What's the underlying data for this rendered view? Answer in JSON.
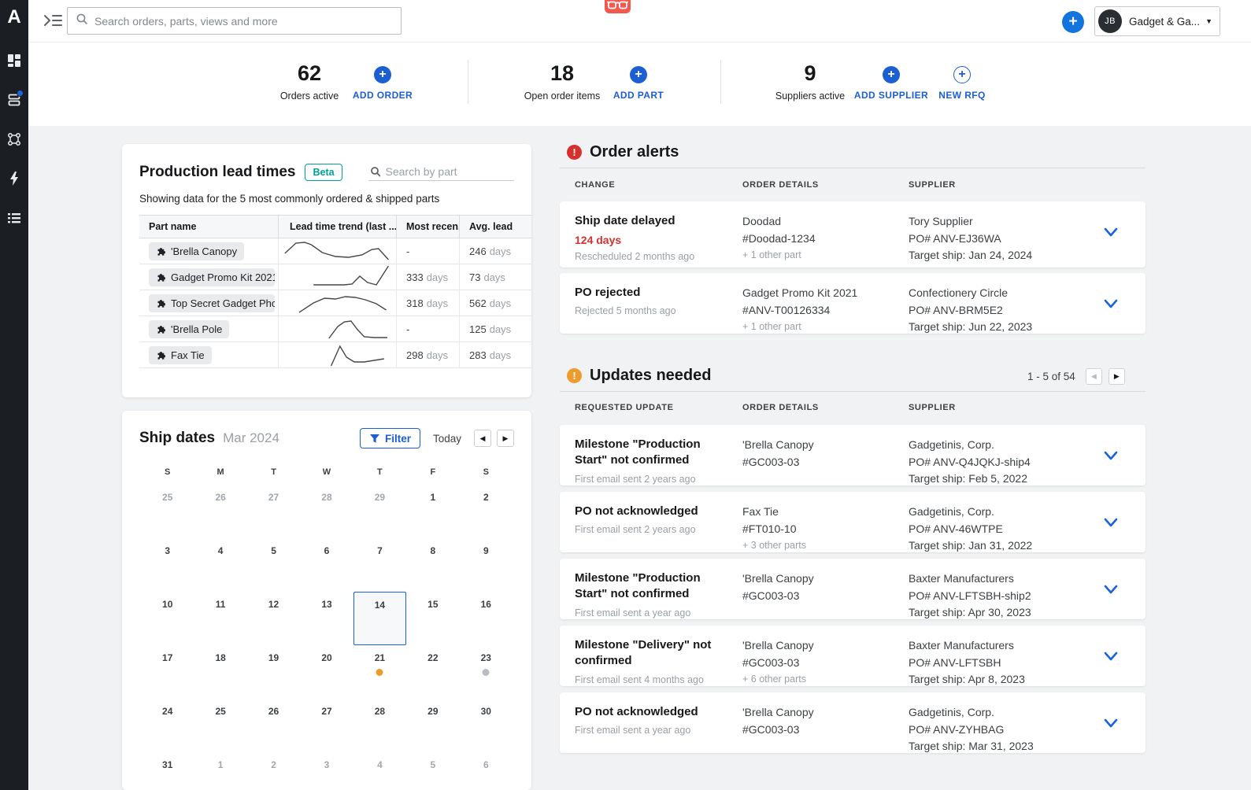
{
  "colors": {
    "accent_blue": "#1b5fd2",
    "teal": "#00a195",
    "alert_red": "#d5312e",
    "warn_orange": "#ee9b2d",
    "event_orange": "#ee9b2e",
    "event_gray": "#b9bdc1"
  },
  "sidebar": {
    "logo": "A",
    "items": [
      {
        "name": "dashboard"
      },
      {
        "name": "orders",
        "notification": true
      },
      {
        "name": "parts"
      },
      {
        "name": "automations"
      },
      {
        "name": "views"
      }
    ]
  },
  "topbar": {
    "search_placeholder": "Search orders, parts, views and more",
    "add_button": "+",
    "account": {
      "initials": "JB",
      "name": "Gadget & Ga..."
    }
  },
  "stats": [
    {
      "value": "62",
      "label": "Orders active"
    },
    {
      "value": "18",
      "label": "Open order items"
    },
    {
      "value": "9",
      "label": "Suppliers active"
    }
  ],
  "stat_actions": {
    "add_order": "ADD ORDER",
    "add_part": "ADD PART",
    "add_supplier": "ADD SUPPLIER",
    "new_rfq": "NEW RFQ"
  },
  "lead_times": {
    "title": "Production lead times",
    "badge": "Beta",
    "search_placeholder": "Search by part",
    "subtitle": "Showing data for the 5 most commonly ordered & shipped parts",
    "columns": [
      "Part name",
      "Lead time trend (last ...",
      "Most recen...",
      "Avg. lead"
    ],
    "rows": [
      {
        "name": "'Brella Canopy",
        "most_recent": "-",
        "avg": "246 days",
        "trend": [
          [
            2,
            20
          ],
          [
            12,
            7
          ],
          [
            20,
            6
          ],
          [
            26,
            9
          ],
          [
            36,
            19
          ],
          [
            48,
            24
          ],
          [
            60,
            25
          ],
          [
            72,
            22
          ],
          [
            81,
            15
          ],
          [
            87,
            14
          ],
          [
            96,
            28
          ]
        ]
      },
      {
        "name": "Gadget Promo Kit 2021",
        "most_recent": "333 days",
        "avg": "73 days",
        "trend": [
          [
            28,
            27
          ],
          [
            38,
            27
          ],
          [
            47,
            27
          ],
          [
            56,
            27
          ],
          [
            63,
            26
          ],
          [
            70,
            16
          ],
          [
            77,
            24
          ],
          [
            85,
            27
          ],
          [
            96,
            3
          ]
        ]
      },
      {
        "name": "Top Secret Gadget Pho",
        "most_recent": "318 days",
        "avg": "562 days",
        "trend": [
          [
            15,
            29
          ],
          [
            28,
            17
          ],
          [
            38,
            11
          ],
          [
            48,
            12
          ],
          [
            57,
            9
          ],
          [
            66,
            10
          ],
          [
            75,
            13
          ],
          [
            85,
            18
          ],
          [
            94,
            26
          ]
        ]
      },
      {
        "name": "'Brella Pole",
        "most_recent": "-",
        "avg": "125 days",
        "trend": [
          [
            42,
            29
          ],
          [
            50,
            14
          ],
          [
            56,
            8
          ],
          [
            62,
            7
          ],
          [
            68,
            18
          ],
          [
            74,
            27
          ],
          [
            83,
            28
          ],
          [
            95,
            28
          ]
        ]
      },
      {
        "name": "Fax Tie",
        "most_recent": "298 days",
        "avg": "283 days",
        "trend": [
          [
            44,
            31
          ],
          [
            52,
            6
          ],
          [
            58,
            20
          ],
          [
            65,
            26
          ],
          [
            74,
            26
          ],
          [
            83,
            24
          ],
          [
            92,
            22
          ]
        ]
      }
    ]
  },
  "ship_dates": {
    "title": "Ship dates",
    "month": "Mar 2024",
    "filter_label": "Filter",
    "today_label": "Today",
    "weekdays": [
      "S",
      "M",
      "T",
      "W",
      "T",
      "F",
      "S"
    ],
    "weeks": [
      [
        {
          "d": "25",
          "muted": true
        },
        {
          "d": "26",
          "muted": true
        },
        {
          "d": "27",
          "muted": true
        },
        {
          "d": "28",
          "muted": true
        },
        {
          "d": "29",
          "muted": true
        },
        {
          "d": "1"
        },
        {
          "d": "2"
        }
      ],
      [
        {
          "d": "3"
        },
        {
          "d": "4"
        },
        {
          "d": "5"
        },
        {
          "d": "6"
        },
        {
          "d": "7"
        },
        {
          "d": "8"
        },
        {
          "d": "9"
        }
      ],
      [
        {
          "d": "10"
        },
        {
          "d": "11"
        },
        {
          "d": "12"
        },
        {
          "d": "13"
        },
        {
          "d": "14",
          "selected": true
        },
        {
          "d": "15"
        },
        {
          "d": "16"
        }
      ],
      [
        {
          "d": "17"
        },
        {
          "d": "18"
        },
        {
          "d": "19"
        },
        {
          "d": "20"
        },
        {
          "d": "21",
          "dot": "#ee9b2e"
        },
        {
          "d": "22"
        },
        {
          "d": "23",
          "dot": "#b9bdc1"
        }
      ],
      [
        {
          "d": "24"
        },
        {
          "d": "25"
        },
        {
          "d": "26"
        },
        {
          "d": "27"
        },
        {
          "d": "28"
        },
        {
          "d": "29"
        },
        {
          "d": "30"
        }
      ],
      [
        {
          "d": "31"
        },
        {
          "d": "1",
          "muted": true
        },
        {
          "d": "2",
          "muted": true
        },
        {
          "d": "3",
          "muted": true
        },
        {
          "d": "4",
          "muted": true
        },
        {
          "d": "5",
          "muted": true
        },
        {
          "d": "6",
          "muted": true
        }
      ]
    ]
  },
  "order_alerts": {
    "title": "Order alerts",
    "columns": [
      "CHANGE",
      "ORDER DETAILS",
      "SUPPLIER"
    ],
    "rows": [
      {
        "change_title": "Ship date delayed",
        "change_delta": "124 days",
        "change_meta": "Rescheduled 2 months ago",
        "part_name": "Doodad",
        "part_id": "#Doodad-1234",
        "part_extra": "+ 1 other part",
        "supplier_name": "Tory Supplier",
        "supplier_po": "PO# ANV-EJ36WA",
        "supplier_target": "Target ship: Jan 24, 2024"
      },
      {
        "change_title": "PO rejected",
        "change_delta": "",
        "change_meta": "Rejected 5 months ago",
        "part_name": "Gadget Promo Kit 2021",
        "part_id": "#ANV-T00126334",
        "part_extra": "+ 1 other part",
        "supplier_name": "Confectionery Circle",
        "supplier_po": "PO# ANV-BRM5E2",
        "supplier_target": "Target ship: Jun 22, 2023"
      }
    ]
  },
  "updates_needed": {
    "title": "Updates needed",
    "pagination": "1 - 5 of 54",
    "columns": [
      "REQUESTED UPDATE",
      "ORDER DETAILS",
      "SUPPLIER"
    ],
    "rows": [
      {
        "change_title": "Milestone \"Production Start\" not confirmed",
        "change_meta": "First email sent 2 years ago",
        "part_name": "'Brella Canopy",
        "part_id": "#GC003-03",
        "part_extra": "",
        "supplier_name": "Gadgetinis, Corp.",
        "supplier_po": "PO# ANV-Q4JQKJ-ship4",
        "supplier_target": "Target ship: Feb 5, 2022"
      },
      {
        "change_title": "PO not acknowledged",
        "change_meta": "First email sent 2 years ago",
        "part_name": "Fax Tie",
        "part_id": "#FT010-10",
        "part_extra": "+ 3 other parts",
        "supplier_name": "Gadgetinis, Corp.",
        "supplier_po": "PO# ANV-46WTPE",
        "supplier_target": "Target ship: Jan 31, 2022"
      },
      {
        "change_title": "Milestone \"Production Start\" not confirmed",
        "change_meta": "First email sent a year ago",
        "part_name": "'Brella Canopy",
        "part_id": "#GC003-03",
        "part_extra": "",
        "supplier_name": "Baxter Manufacturers",
        "supplier_po": "PO# ANV-LFTSBH-ship2",
        "supplier_target": "Target ship: Apr 30, 2023"
      },
      {
        "change_title": "Milestone \"Delivery\" not confirmed",
        "change_meta": "First email sent 4 months ago",
        "part_name": "'Brella Canopy",
        "part_id": "#GC003-03",
        "part_extra": "+ 6 other parts",
        "supplier_name": "Baxter Manufacturers",
        "supplier_po": "PO# ANV-LFTSBH",
        "supplier_target": "Target ship: Apr 8, 2023"
      },
      {
        "change_title": "PO not acknowledged",
        "change_meta": "First email sent a year ago",
        "part_name": "'Brella Canopy",
        "part_id": "#GC003-03",
        "part_extra": "",
        "supplier_name": "Gadgetinis, Corp.",
        "supplier_po": "PO# ANV-ZYHBAG",
        "supplier_target": "Target ship: Mar 31, 2023"
      }
    ]
  }
}
